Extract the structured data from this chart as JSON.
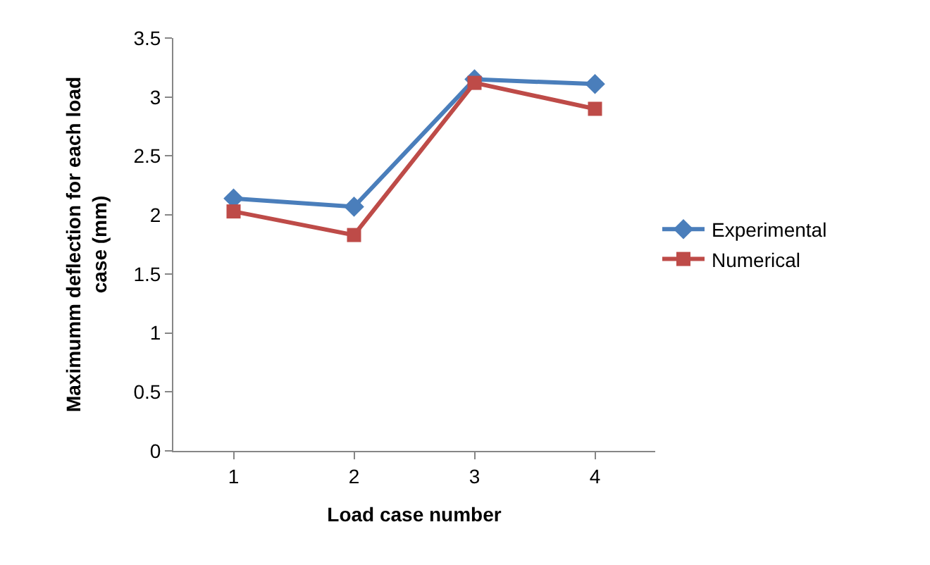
{
  "chart_data": {
    "type": "line",
    "xlabel": "Load case number",
    "ylabel": "Maximumm deflection for each load case (mm)",
    "categories": [
      "1",
      "2",
      "3",
      "4"
    ],
    "series": [
      {
        "name": "Experimental",
        "color": "#4a7ebb",
        "marker": "diamond",
        "values": [
          2.14,
          2.07,
          3.15,
          3.11
        ]
      },
      {
        "name": "Numerical",
        "color": "#be4b48",
        "marker": "square",
        "values": [
          2.03,
          1.83,
          3.12,
          2.9
        ]
      }
    ],
    "ylim": [
      0,
      3.5
    ],
    "yticks": [
      0,
      0.5,
      1,
      1.5,
      2,
      2.5,
      3,
      3.5
    ],
    "legend": "right",
    "line_style": "solid"
  }
}
